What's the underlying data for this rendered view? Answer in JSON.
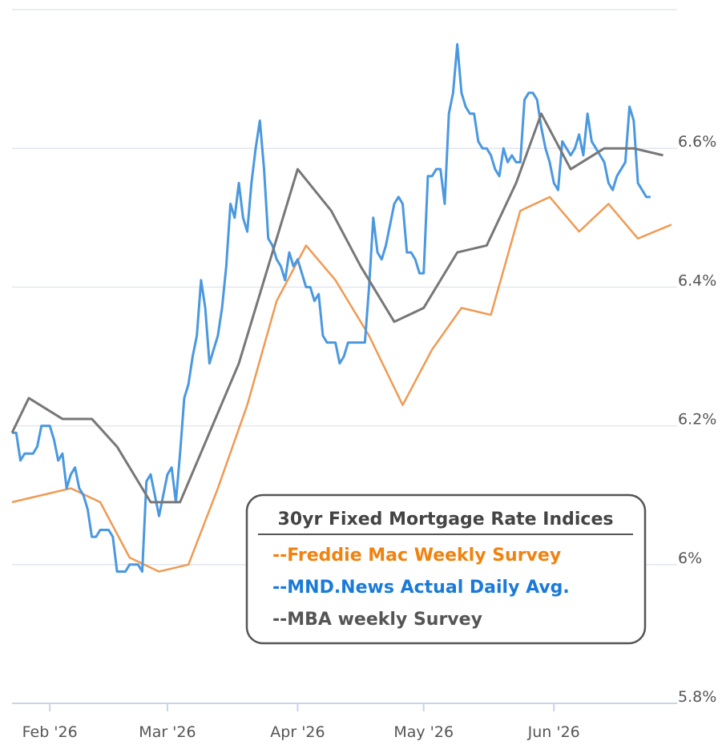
{
  "chart_data": {
    "type": "line",
    "legend_title": "30yr Fixed Mortgage Rate Indices",
    "ylim": [
      5.8,
      6.8
    ],
    "yticks": [
      {
        "value": 5.8,
        "label": "5.8%"
      },
      {
        "value": 6.0,
        "label": "6%"
      },
      {
        "value": 6.2,
        "label": "6.2%"
      },
      {
        "value": 6.4,
        "label": "6.4%"
      },
      {
        "value": 6.6,
        "label": "6.6%"
      }
    ],
    "xlim": [
      23,
      180
    ],
    "xticks": [
      {
        "value": 32,
        "label": "Feb '26"
      },
      {
        "value": 60,
        "label": "Mar '26"
      },
      {
        "value": 91,
        "label": "Apr '26"
      },
      {
        "value": 121,
        "label": "May '26"
      },
      {
        "value": 152,
        "label": "Jun '26"
      }
    ],
    "grid": true,
    "series": [
      {
        "name": "--Freddie Mac Weekly Survey",
        "color": "#ef9a52",
        "text_color": "#f0820f",
        "x": [
          23,
          37,
          44,
          51,
          58,
          65,
          72,
          79,
          86,
          93,
          100,
          108,
          116,
          123,
          130,
          137,
          144,
          151,
          158,
          165,
          172,
          180
        ],
        "values": [
          6.09,
          6.11,
          6.09,
          6.01,
          5.99,
          6.0,
          6.11,
          6.23,
          6.38,
          6.46,
          6.41,
          6.33,
          6.23,
          6.31,
          6.37,
          6.36,
          6.51,
          6.53,
          6.48,
          6.52,
          6.47,
          6.49
        ]
      },
      {
        "name": "--MND.News Actual Daily Avg.",
        "color": "#4a98e0",
        "text_color": "#1a7ad8",
        "x": [
          23,
          24,
          25,
          26,
          27,
          28,
          29,
          30,
          31,
          32,
          33,
          34,
          35,
          36,
          37,
          38,
          39,
          40,
          41,
          42,
          43,
          44,
          45,
          46,
          47,
          48,
          49,
          50,
          51,
          52,
          53,
          54,
          55,
          56,
          57,
          58,
          59,
          60,
          61,
          62,
          63,
          64,
          65,
          66,
          67,
          68,
          69,
          70,
          71,
          72,
          73,
          74,
          75,
          76,
          77,
          78,
          79,
          80,
          81,
          82,
          83,
          84,
          85,
          86,
          87,
          88,
          89,
          90,
          91,
          92,
          93,
          94,
          95,
          96,
          97,
          98,
          99,
          100,
          101,
          102,
          103,
          104,
          105,
          106,
          107,
          108,
          109,
          110,
          111,
          112,
          113,
          114,
          115,
          116,
          117,
          118,
          119,
          120,
          121,
          122,
          123,
          124,
          125,
          126,
          127,
          128,
          129,
          130,
          131,
          132,
          133,
          134,
          135,
          136,
          137,
          138,
          139,
          140,
          141,
          142,
          143,
          144,
          145,
          146,
          147,
          148,
          149,
          150,
          151,
          152,
          153,
          154,
          155,
          156,
          157,
          158,
          159,
          160,
          161,
          162,
          163,
          164,
          165,
          166,
          167,
          168,
          169,
          170,
          171,
          172,
          173,
          174,
          175
        ],
        "values": [
          6.19,
          6.19,
          6.15,
          6.16,
          6.16,
          6.16,
          6.17,
          6.2,
          6.2,
          6.2,
          6.18,
          6.15,
          6.16,
          6.11,
          6.13,
          6.14,
          6.11,
          6.1,
          6.08,
          6.04,
          6.04,
          6.05,
          6.05,
          6.05,
          6.04,
          5.99,
          5.99,
          5.99,
          6.0,
          6.0,
          6.0,
          5.99,
          6.12,
          6.13,
          6.1,
          6.07,
          6.1,
          6.13,
          6.14,
          6.09,
          6.16,
          6.24,
          6.26,
          6.3,
          6.33,
          6.41,
          6.37,
          6.29,
          6.31,
          6.33,
          6.37,
          6.43,
          6.52,
          6.5,
          6.55,
          6.5,
          6.48,
          6.55,
          6.6,
          6.64,
          6.57,
          6.47,
          6.46,
          6.44,
          6.43,
          6.41,
          6.45,
          6.43,
          6.44,
          6.42,
          6.4,
          6.4,
          6.38,
          6.39,
          6.33,
          6.32,
          6.32,
          6.32,
          6.29,
          6.3,
          6.32,
          6.32,
          6.32,
          6.32,
          6.32,
          6.4,
          6.5,
          6.45,
          6.44,
          6.46,
          6.49,
          6.52,
          6.53,
          6.52,
          6.45,
          6.45,
          6.44,
          6.42,
          6.42,
          6.56,
          6.56,
          6.57,
          6.57,
          6.52,
          6.65,
          6.68,
          6.75,
          6.68,
          6.66,
          6.65,
          6.65,
          6.61,
          6.6,
          6.6,
          6.59,
          6.57,
          6.56,
          6.6,
          6.58,
          6.59,
          6.58,
          6.58,
          6.67,
          6.68,
          6.68,
          6.67,
          6.63,
          6.6,
          6.58,
          6.55,
          6.54,
          6.61,
          6.6,
          6.59,
          6.6,
          6.62,
          6.59,
          6.65,
          6.61,
          6.6,
          6.59,
          6.58,
          6.55,
          6.54,
          6.56,
          6.57,
          6.58,
          6.66,
          6.64,
          6.55,
          6.54,
          6.53,
          6.53
        ]
      },
      {
        "name": "--MBA weekly Survey",
        "color": "#777777",
        "text_color": "#555555",
        "x": [
          23,
          27,
          35,
          42,
          48,
          56,
          63,
          70,
          77,
          84,
          91,
          99,
          106,
          114,
          121,
          129,
          136,
          143,
          149,
          156,
          164,
          171,
          178
        ],
        "values": [
          6.19,
          6.24,
          6.21,
          6.21,
          6.17,
          6.09,
          6.09,
          6.19,
          6.29,
          6.43,
          6.57,
          6.51,
          6.43,
          6.35,
          6.37,
          6.45,
          6.46,
          6.55,
          6.65,
          6.57,
          6.6,
          6.6,
          6.59
        ]
      }
    ]
  }
}
